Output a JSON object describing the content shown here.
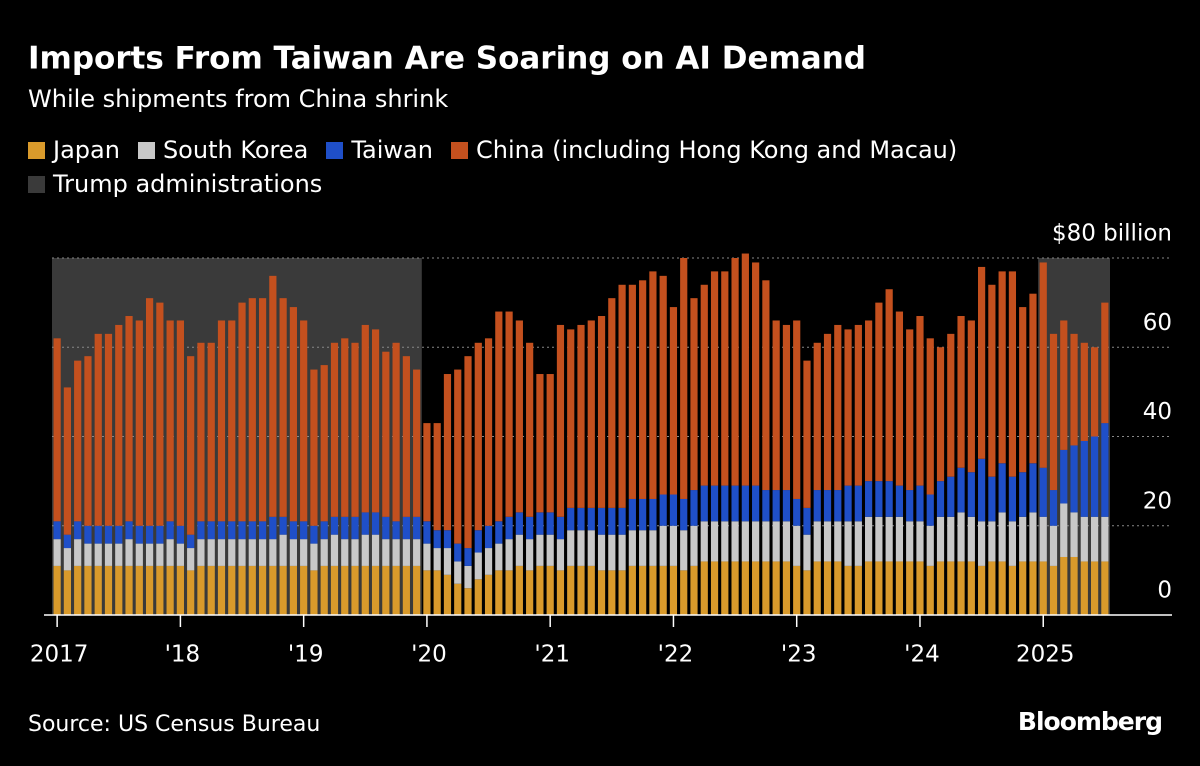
{
  "chart_data": {
    "type": "stacked_bar",
    "title": "Imports From Taiwan Are Soaring on AI Demand",
    "subtitle": "While shipments from China shrink",
    "source": "Source: US Census Bureau",
    "brand": "Bloomberg",
    "categories": [
      "2017",
      null,
      null,
      null,
      null,
      null,
      null,
      null,
      null,
      null,
      null,
      null,
      "'18",
      null,
      null,
      null,
      null,
      null,
      null,
      null,
      null,
      null,
      null,
      null,
      "'19",
      null,
      null,
      null,
      null,
      null,
      null,
      null,
      null,
      null,
      null,
      null,
      "'20",
      null,
      null,
      null,
      null,
      null,
      null,
      null,
      null,
      null,
      null,
      null,
      "'21",
      null,
      null,
      null,
      null,
      null,
      null,
      null,
      null,
      null,
      null,
      null,
      "'22",
      null,
      null,
      null,
      null,
      null,
      null,
      null,
      null,
      null,
      null,
      null,
      "'23",
      null,
      null,
      null,
      null,
      null,
      null,
      null,
      null,
      null,
      null,
      null,
      "'24",
      null,
      null,
      null,
      null,
      null,
      null,
      null,
      null,
      null,
      null,
      null,
      "2025",
      null,
      null,
      null,
      null,
      null,
      null
    ],
    "series": [
      {
        "name": "Japan",
        "color": "#d99a2b",
        "values": [
          11,
          10,
          11,
          11,
          11,
          11,
          11,
          11,
          11,
          11,
          11,
          11,
          11,
          10,
          11,
          11,
          11,
          11,
          11,
          11,
          11,
          11,
          11,
          11,
          11,
          10,
          11,
          11,
          11,
          11,
          11,
          11,
          11,
          11,
          11,
          11,
          10,
          10,
          9,
          7,
          6,
          8,
          9,
          10,
          10,
          11,
          10,
          11,
          11,
          10,
          11,
          11,
          11,
          10,
          10,
          10,
          11,
          11,
          11,
          11,
          11,
          10,
          11,
          12,
          12,
          12,
          12,
          12,
          12,
          12,
          12,
          12,
          11,
          10,
          12,
          12,
          12,
          11,
          11,
          12,
          12,
          12,
          12,
          12,
          12,
          11,
          12,
          12,
          12,
          12,
          11,
          12,
          12,
          11,
          12,
          12,
          12,
          11,
          13,
          13,
          12,
          12,
          12
        ]
      },
      {
        "name": "South Korea",
        "color": "#c8c8c8",
        "values": [
          6,
          5,
          6,
          5,
          5,
          5,
          5,
          6,
          5,
          5,
          5,
          6,
          5,
          5,
          6,
          6,
          6,
          6,
          6,
          6,
          6,
          6,
          7,
          6,
          6,
          6,
          6,
          7,
          6,
          6,
          7,
          7,
          6,
          6,
          6,
          6,
          6,
          5,
          6,
          5,
          5,
          6,
          6,
          6,
          7,
          7,
          7,
          7,
          7,
          7,
          8,
          8,
          8,
          8,
          8,
          8,
          8,
          8,
          8,
          9,
          9,
          9,
          9,
          9,
          9,
          9,
          9,
          9,
          9,
          9,
          9,
          9,
          9,
          8,
          9,
          9,
          9,
          10,
          10,
          10,
          10,
          10,
          10,
          9,
          9,
          9,
          10,
          10,
          11,
          10,
          10,
          9,
          11,
          10,
          10,
          11,
          10,
          9,
          12,
          10,
          10,
          10,
          10
        ]
      },
      {
        "name": "Taiwan",
        "color": "#1f4fc8",
        "values": [
          4,
          3,
          4,
          4,
          4,
          4,
          4,
          4,
          4,
          4,
          4,
          4,
          4,
          3,
          4,
          4,
          4,
          4,
          4,
          4,
          4,
          5,
          4,
          4,
          4,
          4,
          4,
          4,
          5,
          5,
          5,
          5,
          5,
          4,
          5,
          5,
          5,
          4,
          4,
          4,
          4,
          5,
          5,
          5,
          5,
          5,
          5,
          5,
          5,
          5,
          5,
          5,
          5,
          6,
          6,
          6,
          7,
          7,
          7,
          7,
          7,
          7,
          8,
          8,
          8,
          8,
          8,
          8,
          8,
          7,
          7,
          7,
          6,
          6,
          7,
          7,
          7,
          8,
          8,
          8,
          8,
          8,
          7,
          7,
          8,
          7,
          8,
          9,
          10,
          10,
          14,
          10,
          11,
          10,
          10,
          11,
          11,
          8,
          12,
          15,
          17,
          18,
          21
        ]
      },
      {
        "name": "China (including Hong Kong and Macau)",
        "color": "#c4501e",
        "values": [
          41,
          33,
          36,
          38,
          43,
          43,
          45,
          46,
          46,
          51,
          50,
          45,
          46,
          40,
          40,
          40,
          45,
          45,
          49,
          50,
          50,
          54,
          49,
          48,
          45,
          35,
          35,
          39,
          40,
          39,
          42,
          41,
          37,
          40,
          36,
          33,
          22,
          24,
          35,
          39,
          43,
          42,
          42,
          47,
          46,
          43,
          39,
          31,
          31,
          43,
          40,
          41,
          42,
          43,
          47,
          50,
          48,
          49,
          51,
          49,
          42,
          54,
          43,
          45,
          48,
          48,
          51,
          52,
          50,
          47,
          38,
          37,
          40,
          33,
          33,
          35,
          37,
          35,
          36,
          36,
          40,
          43,
          39,
          36,
          38,
          35,
          30,
          32,
          34,
          34,
          43,
          43,
          43,
          46,
          37,
          38,
          46,
          35,
          29,
          25,
          22,
          20,
          27
        ]
      }
    ],
    "shading": {
      "name": "Trump administrations",
      "color": "#3a3a3a",
      "ranges": [
        [
          0,
          35
        ],
        [
          96,
          102
        ]
      ]
    },
    "ylim": [
      0,
      80
    ],
    "yticks": [
      0,
      20,
      40,
      60,
      {
        "value": 80,
        "label": "$80 billion"
      }
    ],
    "grid": true
  }
}
